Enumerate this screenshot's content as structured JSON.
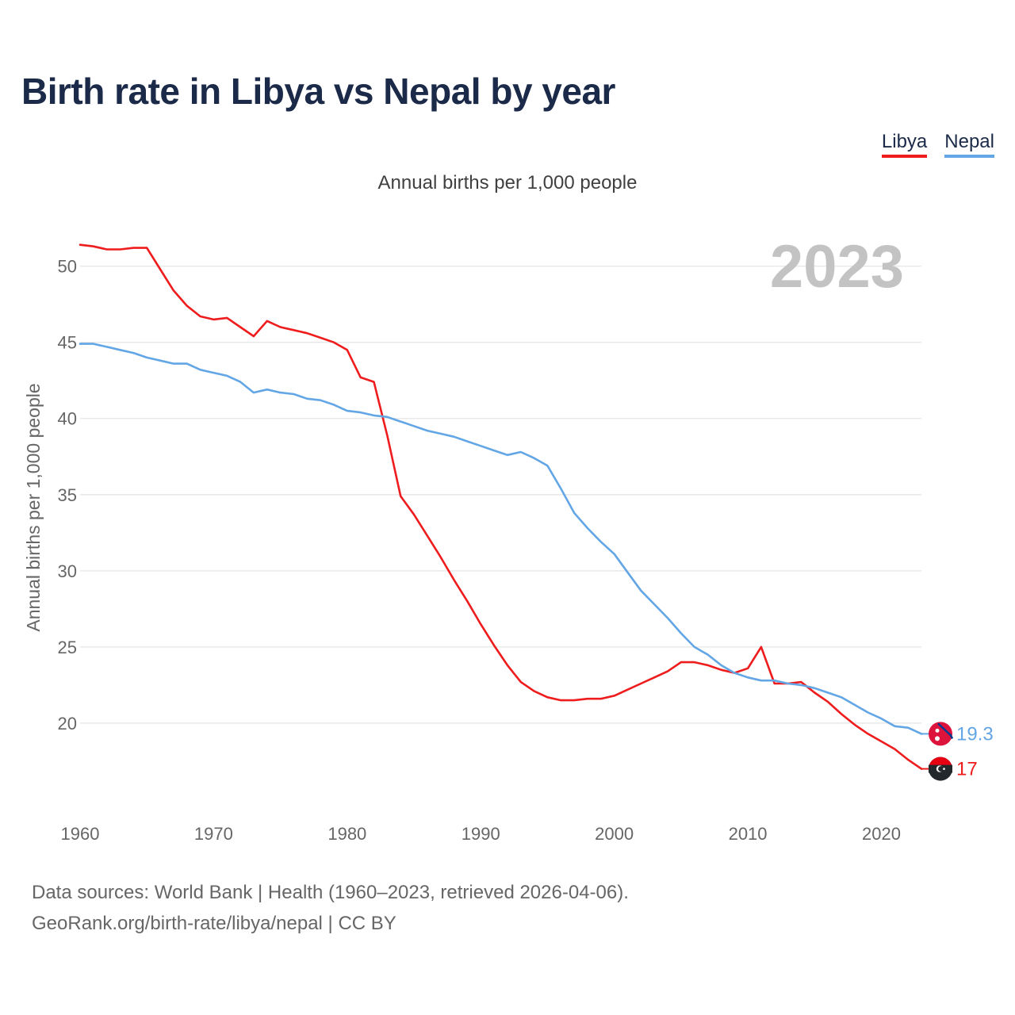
{
  "title": "Birth rate in Libya vs Nepal by year",
  "legend": {
    "libya": "Libya",
    "nepal": "Nepal"
  },
  "colors": {
    "libya": "#ee1c1c",
    "nepal": "#63a6e5",
    "title": "#1b2a48"
  },
  "footer": {
    "line1": "Data sources: World Bank | Health (1960–2023, retrieved 2026-04-06).",
    "line2": "GeoRank.org/birth-rate/libya/nepal | CC BY"
  },
  "chart_data": {
    "type": "line",
    "title": "Birth rate in Libya vs Nepal by year",
    "subtitle": "Annual births per 1,000 people",
    "xlabel": "",
    "ylabel": "Annual births per 1,000 people",
    "year_label": "2023",
    "xlim": [
      1960,
      2023
    ],
    "ylim": [
      15,
      53
    ],
    "x_ticks": [
      "1960",
      "1970",
      "1980",
      "1990",
      "2000",
      "2010",
      "2020"
    ],
    "y_ticks": [
      "20",
      "25",
      "30",
      "35",
      "40",
      "45",
      "50"
    ],
    "grid": true,
    "legend_position": "top-right",
    "x": [
      1960,
      1961,
      1962,
      1963,
      1964,
      1965,
      1966,
      1967,
      1968,
      1969,
      1970,
      1971,
      1972,
      1973,
      1974,
      1975,
      1976,
      1977,
      1978,
      1979,
      1980,
      1981,
      1982,
      1983,
      1984,
      1985,
      1986,
      1987,
      1988,
      1989,
      1990,
      1991,
      1992,
      1993,
      1994,
      1995,
      1996,
      1997,
      1998,
      1999,
      2000,
      2001,
      2002,
      2003,
      2004,
      2005,
      2006,
      2007,
      2008,
      2009,
      2010,
      2011,
      2012,
      2013,
      2014,
      2015,
      2016,
      2017,
      2018,
      2019,
      2020,
      2021,
      2022,
      2023
    ],
    "series": [
      {
        "name": "Libya",
        "color": "#ee1c1c",
        "end_label": "17",
        "values": [
          51.4,
          51.3,
          51.1,
          51.1,
          51.2,
          51.2,
          49.8,
          48.4,
          47.4,
          46.7,
          46.5,
          46.6,
          46.0,
          45.4,
          46.4,
          46.0,
          45.8,
          45.6,
          45.3,
          45.0,
          44.5,
          42.7,
          42.4,
          38.9,
          34.9,
          33.7,
          32.3,
          30.9,
          29.4,
          28.0,
          26.5,
          25.1,
          23.8,
          22.7,
          22.1,
          21.7,
          21.5,
          21.5,
          21.6,
          21.6,
          21.8,
          22.2,
          22.6,
          23.0,
          23.4,
          24.0,
          24.0,
          23.8,
          23.5,
          23.3,
          23.6,
          25.0,
          22.6,
          22.6,
          22.7,
          22.0,
          21.4,
          20.6,
          19.9,
          19.3,
          18.8,
          18.3,
          17.6,
          17.0
        ]
      },
      {
        "name": "Nepal",
        "color": "#63a6e5",
        "end_label": "19.3",
        "values": [
          44.9,
          44.9,
          44.7,
          44.5,
          44.3,
          44.0,
          43.8,
          43.6,
          43.6,
          43.2,
          43.0,
          42.8,
          42.4,
          41.7,
          41.9,
          41.7,
          41.6,
          41.3,
          41.2,
          40.9,
          40.5,
          40.4,
          40.2,
          40.1,
          39.8,
          39.5,
          39.2,
          39.0,
          38.8,
          38.5,
          38.2,
          37.9,
          37.6,
          37.8,
          37.4,
          36.9,
          35.4,
          33.8,
          32.8,
          31.9,
          31.1,
          29.9,
          28.7,
          27.8,
          26.9,
          25.9,
          25.0,
          24.5,
          23.8,
          23.3,
          23.0,
          22.8,
          22.8,
          22.6,
          22.5,
          22.3,
          22.0,
          21.7,
          21.2,
          20.7,
          20.3,
          19.8,
          19.7,
          19.3
        ]
      }
    ]
  }
}
